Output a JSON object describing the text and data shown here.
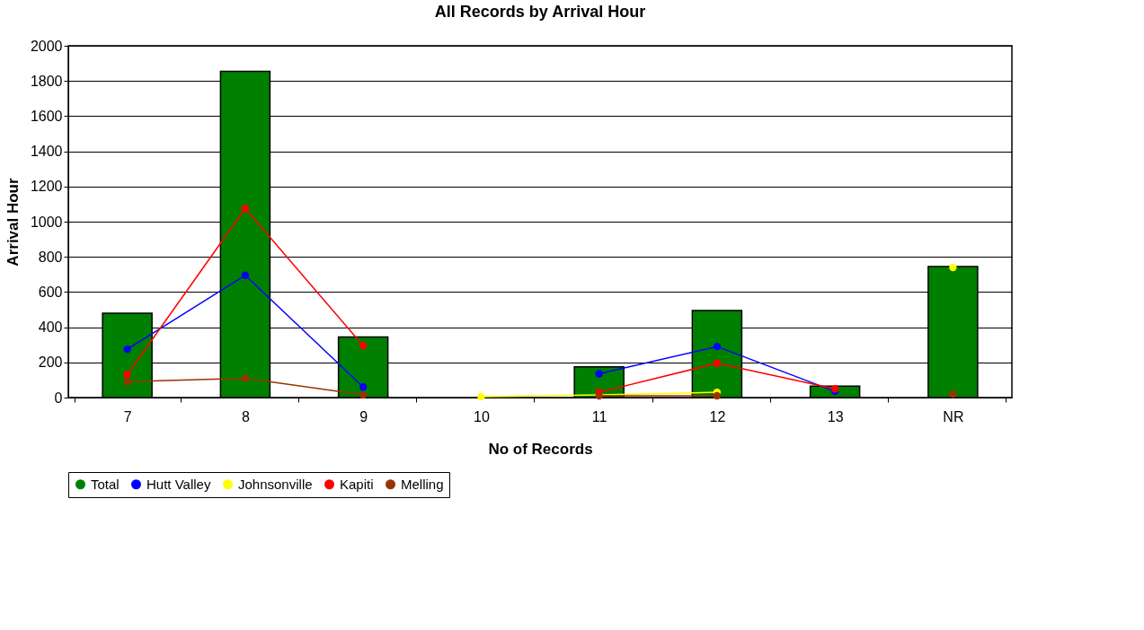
{
  "chart_data": {
    "type": "bar",
    "title": "All Records by Arrival Hour",
    "xlabel": "No of Records",
    "ylabel": "Arrival Hour",
    "categories": [
      "7",
      "8",
      "9",
      "10",
      "11",
      "12",
      "13",
      "NR"
    ],
    "series": [
      {
        "name": "Total",
        "color": "#008000",
        "values": [
          480,
          1855,
          345,
          null,
          175,
          495,
          65,
          745
        ]
      },
      {
        "name": "Hutt Valley",
        "type": "line",
        "color": "#0000ff",
        "values": [
          275,
          695,
          60,
          null,
          135,
          290,
          35,
          null
        ]
      },
      {
        "name": "Johnsonville",
        "type": "line",
        "color": "#ffff00",
        "values": [
          null,
          null,
          null,
          5,
          15,
          30,
          null,
          740
        ]
      },
      {
        "name": "Kapiti",
        "type": "line",
        "color": "#ff0000",
        "values": [
          130,
          1075,
          295,
          null,
          30,
          195,
          50,
          null
        ]
      },
      {
        "name": "Melling",
        "type": "line",
        "color": "#993300",
        "values": [
          90,
          110,
          15,
          null,
          10,
          10,
          null,
          20
        ]
      }
    ],
    "ylim": [
      0,
      2000
    ],
    "yticks": [
      0,
      200,
      400,
      600,
      800,
      1000,
      1200,
      1400,
      1600,
      1800,
      2000
    ],
    "grid": "y",
    "legend": "bottom",
    "marker": "circle"
  }
}
